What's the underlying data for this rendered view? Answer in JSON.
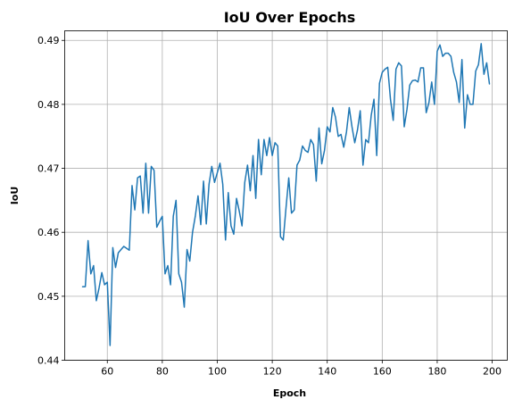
{
  "chart_data": {
    "type": "line",
    "title": "IoU Over Epochs",
    "xlabel": "Epoch",
    "ylabel": "IoU",
    "xlim": [
      44.5,
      205.5
    ],
    "ylim": [
      0.44,
      0.4915
    ],
    "xticks": [
      60,
      80,
      100,
      120,
      140,
      160,
      180,
      200
    ],
    "yticks": [
      0.44,
      0.45,
      0.46,
      0.47,
      0.48,
      0.49
    ],
    "grid": true,
    "legend": "none",
    "series": [
      {
        "color": "#1f77b4",
        "x_start": 51,
        "x_step": 1,
        "values": [
          0.4515,
          0.4515,
          0.4587,
          0.4535,
          0.4548,
          0.4493,
          0.4513,
          0.4537,
          0.4518,
          0.4522,
          0.4423,
          0.4576,
          0.4545,
          0.4568,
          0.4573,
          0.4578,
          0.4575,
          0.4572,
          0.4673,
          0.4635,
          0.4685,
          0.4688,
          0.463,
          0.4708,
          0.463,
          0.4703,
          0.4697,
          0.4608,
          0.4617,
          0.4625,
          0.4535,
          0.4548,
          0.4518,
          0.4625,
          0.465,
          0.4535,
          0.4522,
          0.4483,
          0.4573,
          0.4555,
          0.46,
          0.4625,
          0.4657,
          0.4612,
          0.468,
          0.4613,
          0.4675,
          0.4703,
          0.4678,
          0.4693,
          0.4708,
          0.4675,
          0.4588,
          0.4662,
          0.461,
          0.4597,
          0.4653,
          0.4633,
          0.461,
          0.4678,
          0.4705,
          0.4665,
          0.472,
          0.4653,
          0.4745,
          0.469,
          0.4745,
          0.472,
          0.4748,
          0.472,
          0.474,
          0.4735,
          0.4593,
          0.4588,
          0.4638,
          0.4685,
          0.463,
          0.4635,
          0.4705,
          0.4713,
          0.4735,
          0.4728,
          0.4725,
          0.4745,
          0.4737,
          0.468,
          0.4763,
          0.4707,
          0.4728,
          0.4765,
          0.4757,
          0.4795,
          0.478,
          0.475,
          0.4753,
          0.4733,
          0.4757,
          0.4795,
          0.4765,
          0.474,
          0.476,
          0.479,
          0.4705,
          0.4745,
          0.474,
          0.4783,
          0.4808,
          0.472,
          0.4833,
          0.485,
          0.4855,
          0.4858,
          0.4808,
          0.4775,
          0.4855,
          0.4865,
          0.486,
          0.4765,
          0.4792,
          0.483,
          0.4837,
          0.4838,
          0.4835,
          0.4857,
          0.4857,
          0.4787,
          0.4803,
          0.4835,
          0.48,
          0.4883,
          0.4893,
          0.4875,
          0.488,
          0.488,
          0.4875,
          0.485,
          0.4835,
          0.4803,
          0.487,
          0.4763,
          0.4815,
          0.48,
          0.48,
          0.4852,
          0.4862,
          0.4895,
          0.4847,
          0.4865,
          0.4832
        ]
      }
    ]
  }
}
